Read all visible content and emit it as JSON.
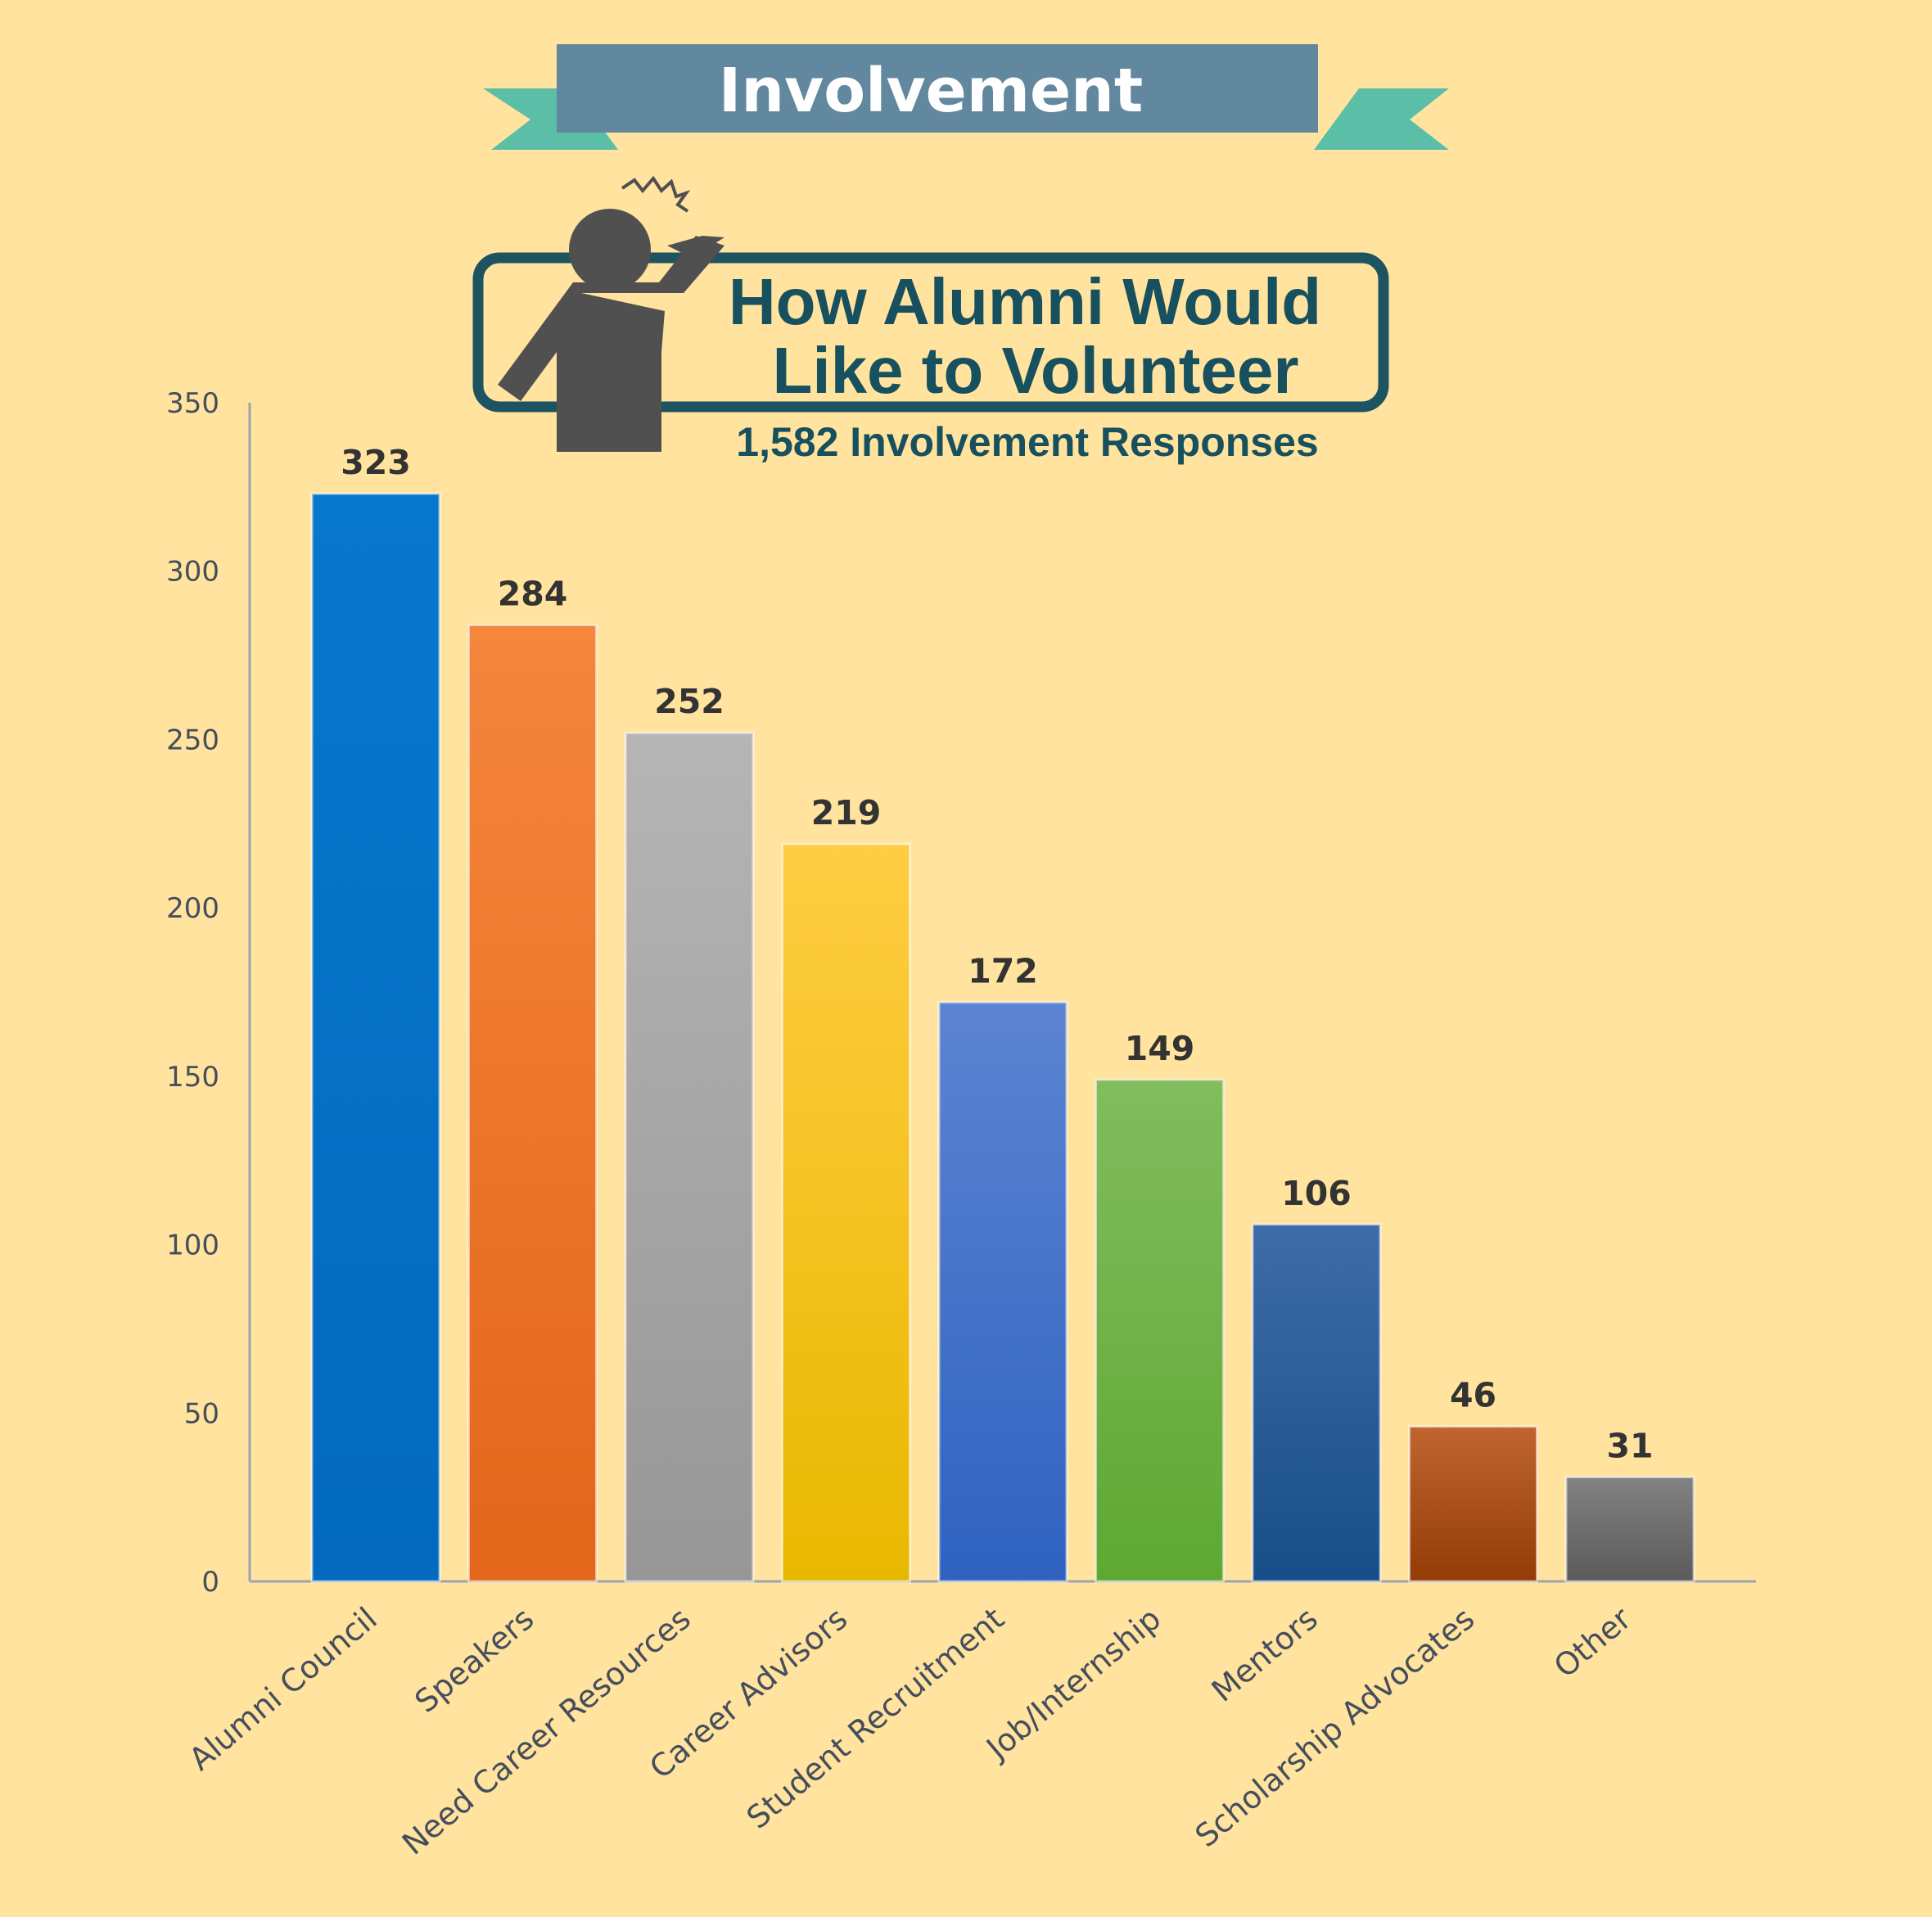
{
  "banner": {
    "label": "Involvement"
  },
  "callout": {
    "line1": "How Alumni Would",
    "line2": "Like to Volunteer",
    "subtitle": "1,582 Involvement Responses"
  },
  "icons": [
    "person-raising-hand-icon",
    "spark-icon"
  ],
  "colors": {
    "background": "#FFE39E",
    "banner": "#62889F",
    "ribbon": "#5BBFA8",
    "callout_border": "#1E5462",
    "callout_text": "#17505E",
    "person": "#505050",
    "axis": "#9DA3AE",
    "tick_text": "#454E5C",
    "value_text": "#333333"
  },
  "chart_data": {
    "type": "bar",
    "title": "How Alumni Would Like to Volunteer",
    "subtitle": "1,582 Involvement Responses",
    "xlabel": "",
    "ylabel": "",
    "ylim": [
      0,
      350
    ],
    "yticks": [
      0,
      50,
      100,
      150,
      200,
      250,
      300,
      350
    ],
    "grid": false,
    "legend": "none",
    "categories": [
      "Alumni Council",
      "Speakers",
      "Need Career Resources",
      "Career Advisors",
      "Student Recruitment",
      "Job/Internship",
      "Mentors",
      "Scholarship Advocates",
      "Other"
    ],
    "values": [
      323,
      284,
      252,
      219,
      172,
      149,
      106,
      46,
      31
    ],
    "bar_colors": [
      [
        "#0878CC",
        "#0269BE"
      ],
      [
        "#F5863C",
        "#E3661A"
      ],
      [
        "#B5B5B5",
        "#979797"
      ],
      [
        "#FFCD42",
        "#E8B800"
      ],
      [
        "#5C84D2",
        "#2F62C0"
      ],
      [
        "#82BC5E",
        "#5EA832"
      ],
      [
        "#3E6CA8",
        "#174E88"
      ],
      [
        "#C06530",
        "#943C06"
      ],
      [
        "#828282",
        "#5A5A5A"
      ]
    ]
  }
}
